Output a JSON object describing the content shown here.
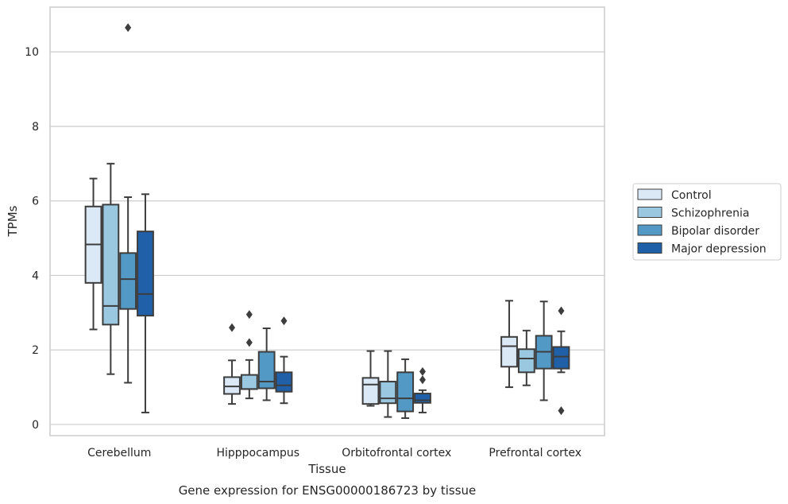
{
  "chart_data": {
    "type": "box",
    "caption": "Gene expression for ENSG00000186723 by tissue",
    "xlabel": "Tissue",
    "ylabel": "TPMs",
    "ylim": [
      -0.3,
      11.2
    ],
    "yticks": [
      0,
      2,
      4,
      6,
      8,
      10
    ],
    "ygrid": true,
    "legend_position": "right",
    "categories": [
      "Cerebellum",
      "Hipppocampus",
      "Orbitofrontal cortex",
      "Prefrontal cortex"
    ],
    "series": [
      {
        "name": "Control",
        "color": "#dbe9f6",
        "boxes": [
          {
            "whislo": 2.55,
            "q1": 3.8,
            "med": 4.83,
            "q3": 5.85,
            "whishi": 6.6,
            "fliers": []
          },
          {
            "whislo": 0.55,
            "q1": 0.82,
            "med": 1.02,
            "q3": 1.27,
            "whishi": 1.72,
            "fliers": [
              2.6
            ]
          },
          {
            "whislo": 0.5,
            "q1": 0.55,
            "med": 1.07,
            "q3": 1.25,
            "whishi": 1.97,
            "fliers": []
          },
          {
            "whislo": 1.0,
            "q1": 1.55,
            "med": 2.1,
            "q3": 2.35,
            "whishi": 3.32,
            "fliers": []
          }
        ]
      },
      {
        "name": "Schizophrenia",
        "color": "#9ac8e0",
        "boxes": [
          {
            "whislo": 1.35,
            "q1": 2.68,
            "med": 3.18,
            "q3": 5.9,
            "whishi": 7.0,
            "fliers": []
          },
          {
            "whislo": 0.7,
            "q1": 0.95,
            "med": 0.95,
            "q3": 1.33,
            "whishi": 1.73,
            "fliers": [
              2.2,
              2.95
            ]
          },
          {
            "whislo": 0.2,
            "q1": 0.57,
            "med": 0.7,
            "q3": 1.15,
            "whishi": 1.97,
            "fliers": []
          },
          {
            "whislo": 1.05,
            "q1": 1.4,
            "med": 1.77,
            "q3": 2.02,
            "whishi": 2.52,
            "fliers": []
          }
        ]
      },
      {
        "name": "Bipolar disorder",
        "color": "#5299c6",
        "boxes": [
          {
            "whislo": 1.12,
            "q1": 3.1,
            "med": 3.9,
            "q3": 4.6,
            "whishi": 6.1,
            "fliers": [
              10.65
            ]
          },
          {
            "whislo": 0.65,
            "q1": 0.97,
            "med": 1.15,
            "q3": 1.95,
            "whishi": 2.58,
            "fliers": []
          },
          {
            "whislo": 0.17,
            "q1": 0.35,
            "med": 0.7,
            "q3": 1.4,
            "whishi": 1.75,
            "fliers": []
          },
          {
            "whislo": 0.65,
            "q1": 1.5,
            "med": 1.95,
            "q3": 2.38,
            "whishi": 3.3,
            "fliers": []
          }
        ]
      },
      {
        "name": "Major depression",
        "color": "#2060a8",
        "boxes": [
          {
            "whislo": 0.32,
            "q1": 2.92,
            "med": 3.5,
            "q3": 5.18,
            "whishi": 6.18,
            "fliers": []
          },
          {
            "whislo": 0.57,
            "q1": 0.88,
            "med": 1.05,
            "q3": 1.4,
            "whishi": 1.82,
            "fliers": [
              2.78
            ]
          },
          {
            "whislo": 0.32,
            "q1": 0.58,
            "med": 0.65,
            "q3": 0.83,
            "whishi": 0.92,
            "fliers": [
              1.2,
              1.42
            ]
          },
          {
            "whislo": 1.4,
            "q1": 1.5,
            "med": 1.82,
            "q3": 2.08,
            "whishi": 2.5,
            "fliers": [
              0.37,
              3.05
            ]
          }
        ]
      }
    ]
  }
}
